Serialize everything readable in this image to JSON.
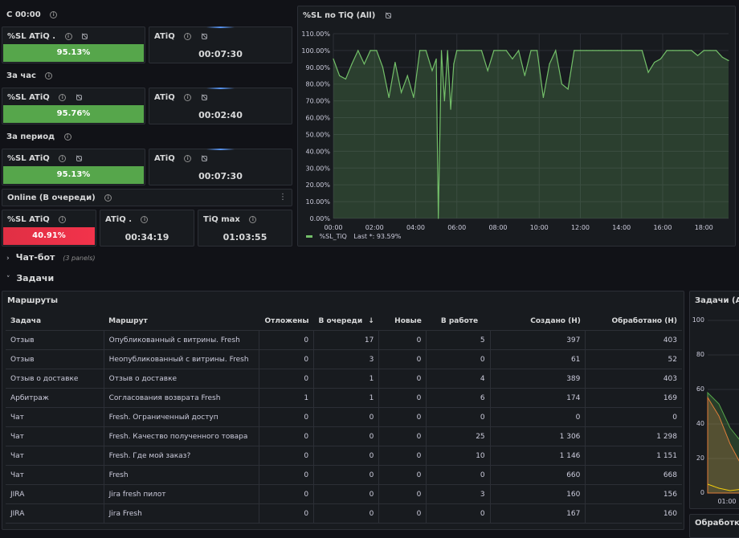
{
  "groups": {
    "since_midnight": "С 00:00",
    "last_hour": "За час",
    "period": "За период",
    "online": "Online (В очереди)"
  },
  "stats": {
    "sl_since_midnight": {
      "title": "%SL ATiQ .",
      "value": "95.13%",
      "color": "#56a64b"
    },
    "atiq_since_midnight": {
      "title": "ATiQ",
      "value": "00:07:30"
    },
    "sl_last_hour": {
      "title": "%SL ATiQ",
      "value": "95.76%",
      "color": "#56a64b"
    },
    "atiq_last_hour": {
      "title": "ATiQ",
      "value": "00:02:40"
    },
    "sl_period": {
      "title": "%SL ATiQ",
      "value": "95.13%",
      "color": "#56a64b"
    },
    "atiq_period": {
      "title": "ATiQ",
      "value": "00:07:30"
    },
    "sl_online": {
      "title": "%SL ATiQ",
      "value": "40.91%",
      "color": "#e02f44"
    },
    "atiq_online": {
      "title": "ATiQ .",
      "value": "00:34:19"
    },
    "tiq_max_online": {
      "title": "TiQ max",
      "value": "01:03:55"
    }
  },
  "timeseries_panel": {
    "title": "%SL по TiQ (All)",
    "legend_series": "%SL_TiQ",
    "legend_last": "Last *: 93.59%"
  },
  "chart_data": {
    "type": "area",
    "title": "%SL по TiQ (All)",
    "y_ticks": [
      "0.00%",
      "10.00%",
      "20.00%",
      "30.00%",
      "40.00%",
      "50.00%",
      "60.00%",
      "70.00%",
      "80.00%",
      "90.00%",
      "100.00%",
      "110.00%"
    ],
    "x_ticks": [
      "00:00",
      "02:00",
      "04:00",
      "06:00",
      "08:00",
      "10:00",
      "12:00",
      "14:00",
      "16:00",
      "18:00"
    ],
    "ylim": [
      0,
      110
    ],
    "xlim_hours": [
      0,
      19.2
    ],
    "series": [
      {
        "name": "%SL_TiQ",
        "color": "#73bf69",
        "x": [
          0,
          0.3,
          0.6,
          0.9,
          1.2,
          1.5,
          1.8,
          2.1,
          2.4,
          2.7,
          3.0,
          3.3,
          3.6,
          3.9,
          4.2,
          4.5,
          4.8,
          5.0,
          5.1,
          5.25,
          5.4,
          5.55,
          5.7,
          5.85,
          6.0,
          6.3,
          6.6,
          6.9,
          7.2,
          7.5,
          7.8,
          8.1,
          8.4,
          8.7,
          9.0,
          9.3,
          9.6,
          9.9,
          10.2,
          10.5,
          10.8,
          11.1,
          11.4,
          11.7,
          12.0,
          12.3,
          12.6,
          12.9,
          13.2,
          13.5,
          13.8,
          14.1,
          14.4,
          14.7,
          15.0,
          15.3,
          15.6,
          15.9,
          16.2,
          16.5,
          16.8,
          17.1,
          17.4,
          17.7,
          18.0,
          18.3,
          18.6,
          18.9,
          19.2
        ],
        "y": [
          95,
          85,
          83,
          92,
          100,
          92,
          100,
          100,
          90,
          72,
          93,
          75,
          85,
          72,
          100,
          100,
          88,
          95,
          0,
          100,
          70,
          100,
          65,
          92,
          100,
          100,
          100,
          100,
          100,
          88,
          100,
          100,
          100,
          95,
          100,
          85,
          100,
          100,
          72,
          92,
          100,
          80,
          77,
          100,
          100,
          100,
          100,
          100,
          100,
          100,
          100,
          100,
          100,
          100,
          100,
          87,
          93,
          95,
          100,
          100,
          100,
          100,
          100,
          97,
          100,
          100,
          100,
          96,
          94
        ]
      }
    ]
  },
  "sections": {
    "chatbot": {
      "label": "Чат-бот",
      "sub": "(3 panels)"
    },
    "tasks": {
      "label": "Задачи"
    }
  },
  "routes_panel": {
    "title": "Маршруты",
    "columns": [
      "Задача",
      "Маршрут",
      "Отложены",
      "В очереди",
      "Новые",
      "В работе",
      "Создано (Н)",
      "Обработано (Н)"
    ],
    "sort_indicator": "↓",
    "rows": [
      [
        "Отзыв",
        "Опубликованный с витрины. Fresh",
        "0",
        "17",
        "0",
        "5",
        "397",
        "403"
      ],
      [
        "Отзыв",
        "Неопубликованный с витрины. Fresh",
        "0",
        "3",
        "0",
        "0",
        "61",
        "52"
      ],
      [
        "Отзыв о доставке",
        "Отзыв о доставке",
        "0",
        "1",
        "0",
        "4",
        "389",
        "403"
      ],
      [
        "Арбитраж",
        "Согласования возврата Fresh",
        "1",
        "1",
        "0",
        "6",
        "174",
        "169"
      ],
      [
        "Чат",
        "Fresh. Ограниченный доступ",
        "0",
        "0",
        "0",
        "0",
        "0",
        "0"
      ],
      [
        "Чат",
        "Fresh. Качество полученного товара",
        "0",
        "0",
        "0",
        "25",
        "1 306",
        "1 298"
      ],
      [
        "Чат",
        "Fresh. Где мой заказ?",
        "0",
        "0",
        "0",
        "10",
        "1 146",
        "1 151"
      ],
      [
        "Чат",
        "Fresh",
        "0",
        "0",
        "0",
        "0",
        "660",
        "668"
      ],
      [
        "JIRA",
        "Jira fresh пилот",
        "0",
        "0",
        "0",
        "3",
        "160",
        "156"
      ],
      [
        "JIRA",
        "Jira Fresh",
        "0",
        "0",
        "0",
        "0",
        "167",
        "160"
      ]
    ]
  },
  "tasks_chart_panel": {
    "title": "Задачи (All)",
    "y_ticks": [
      "0",
      "20",
      "40",
      "60",
      "80",
      "100"
    ],
    "x_tick": "01:00"
  },
  "bottom_panel": {
    "title": "Обработка ч"
  }
}
